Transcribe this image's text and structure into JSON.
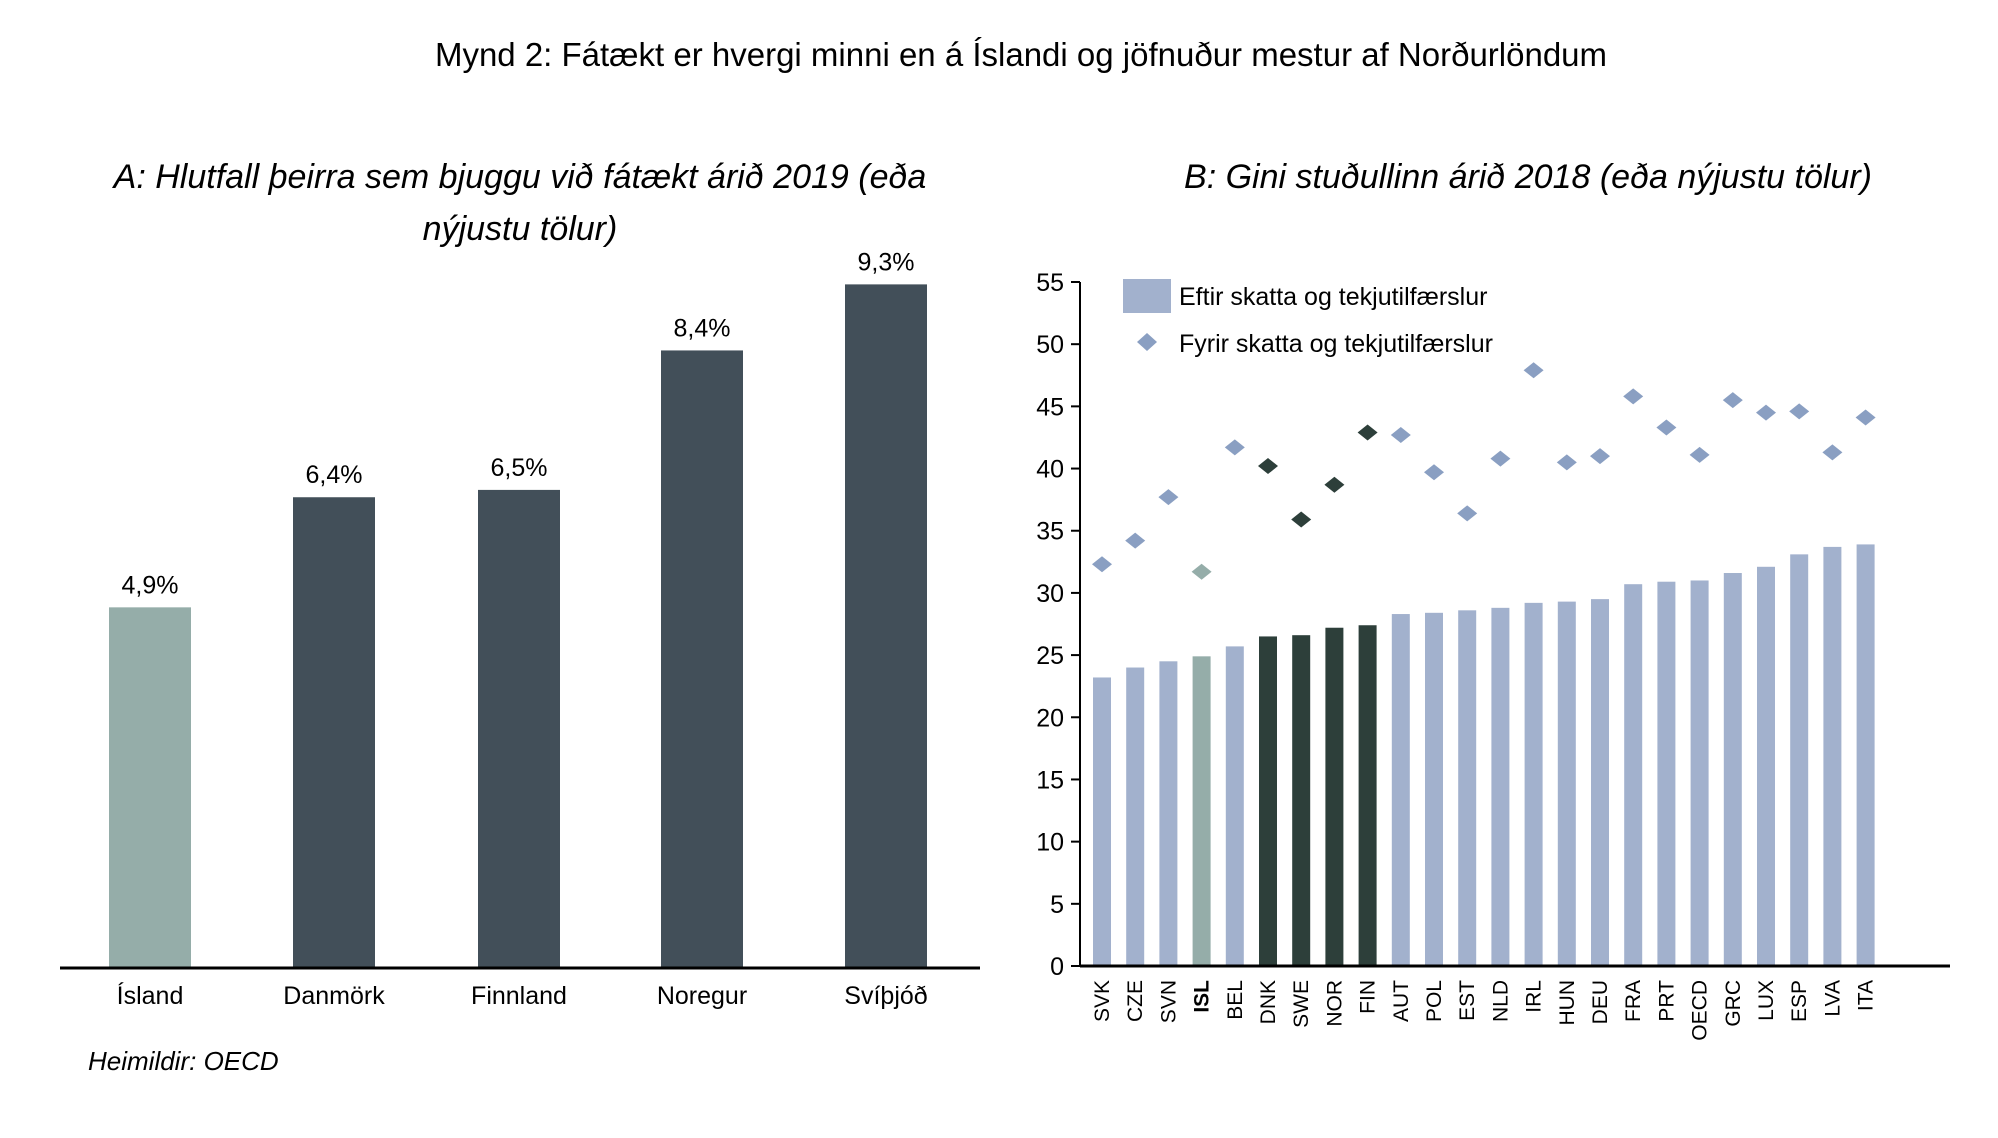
{
  "figure_title": "Mynd 2: Fátækt er hvergi minni en á Íslandi og jöfnuður mestur af Norðurlöndum",
  "source": "Heimildir: OECD",
  "colors": {
    "iceland": "#95ADA9",
    "nordic_left": "#424F59",
    "nordic_right": "#2D3F3A",
    "other_bar": "#A2B1CD",
    "other_diamond": "#8A9FC2"
  },
  "chart_data": [
    {
      "type": "bar",
      "title_lines": [
        "A: Hlutfall þeirra sem bjuggu við fátækt árið 2019 (eða",
        "nýjustu tölur)"
      ],
      "categories": [
        "Ísland",
        "Danmörk",
        "Finnland",
        "Noregur",
        "Svíþjóð"
      ],
      "values": [
        4.9,
        6.4,
        6.5,
        8.4,
        9.3
      ],
      "data_labels": [
        "4,9%",
        "6,4%",
        "6,5%",
        "8,4%",
        "9,3%"
      ],
      "highlight": [
        "iceland",
        "nordic",
        "nordic",
        "nordic",
        "nordic"
      ],
      "ylim": [
        0,
        10
      ],
      "y_axis_visible": false,
      "grid": false
    },
    {
      "type": "bar+scatter",
      "title": "B: Gini stuðullinn árið 2018 (eða nýjustu tölur)",
      "categories": [
        "SVK",
        "CZE",
        "SVN",
        "ISL",
        "BEL",
        "DNK",
        "SWE",
        "NOR",
        "FIN",
        "AUT",
        "POL",
        "EST",
        "NLD",
        "IRL",
        "HUN",
        "DEU",
        "FRA",
        "PRT",
        "OECD",
        "GRC",
        "LUX",
        "ESP",
        "LVA",
        "ITA"
      ],
      "highlight": [
        "other",
        "other",
        "other",
        "iceland",
        "other",
        "nordic",
        "nordic",
        "nordic",
        "nordic",
        "other",
        "other",
        "other",
        "other",
        "other",
        "other",
        "other",
        "other",
        "other",
        "other",
        "other",
        "other",
        "other",
        "other",
        "other"
      ],
      "bold_categories": [
        "ISL"
      ],
      "series": [
        {
          "name": "Eftir skatta og tekjutilfærslur",
          "kind": "bar",
          "values": [
            23.2,
            24.0,
            24.5,
            24.9,
            25.7,
            26.5,
            26.6,
            27.2,
            27.4,
            28.3,
            28.4,
            28.6,
            28.8,
            29.2,
            29.3,
            29.5,
            30.7,
            30.9,
            31.0,
            31.6,
            32.1,
            33.1,
            33.7,
            33.9
          ]
        },
        {
          "name": "Fyrir skatta og tekjutilfærslur",
          "kind": "diamond",
          "values": [
            32.3,
            34.2,
            37.7,
            31.7,
            41.7,
            40.2,
            35.9,
            38.7,
            42.9,
            42.7,
            39.7,
            36.4,
            40.8,
            47.9,
            40.5,
            41.0,
            45.8,
            43.3,
            41.1,
            45.5,
            44.5,
            44.6,
            41.3,
            44.1
          ]
        }
      ],
      "ylim": [
        0,
        55
      ],
      "yticks": [
        0,
        5,
        10,
        15,
        20,
        25,
        30,
        35,
        40,
        45,
        50,
        55
      ],
      "legend": "top-left",
      "grid": false
    }
  ]
}
